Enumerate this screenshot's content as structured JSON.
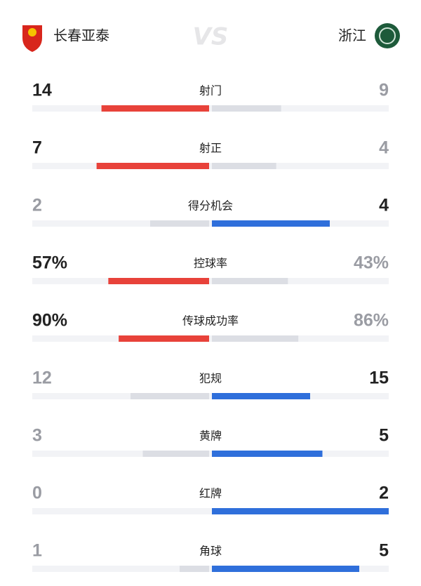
{
  "header": {
    "home_team": "长春亚泰",
    "vs": "VS",
    "away_team": "浙江"
  },
  "home_color": "#e8423a",
  "away_color": "#2f6fdb",
  "stats": [
    {
      "label": "射门",
      "home": 14,
      "away": 9
    },
    {
      "label": "射正",
      "home": 7,
      "away": 4
    },
    {
      "label": "得分机会",
      "home": 2,
      "away": 4
    },
    {
      "label": "控球率",
      "home": 57,
      "away": 43,
      "home_label": "57%",
      "away_label": "43%"
    },
    {
      "label": "传球成功率",
      "home": 90,
      "away": 86,
      "home_label": "90%",
      "away_label": "86%"
    },
    {
      "label": "犯规",
      "home": 12,
      "away": 15
    },
    {
      "label": "黄牌",
      "home": 3,
      "away": 5
    },
    {
      "label": "红牌",
      "home": 0,
      "away": 2
    },
    {
      "label": "角球",
      "home": 1,
      "away": 5
    }
  ]
}
